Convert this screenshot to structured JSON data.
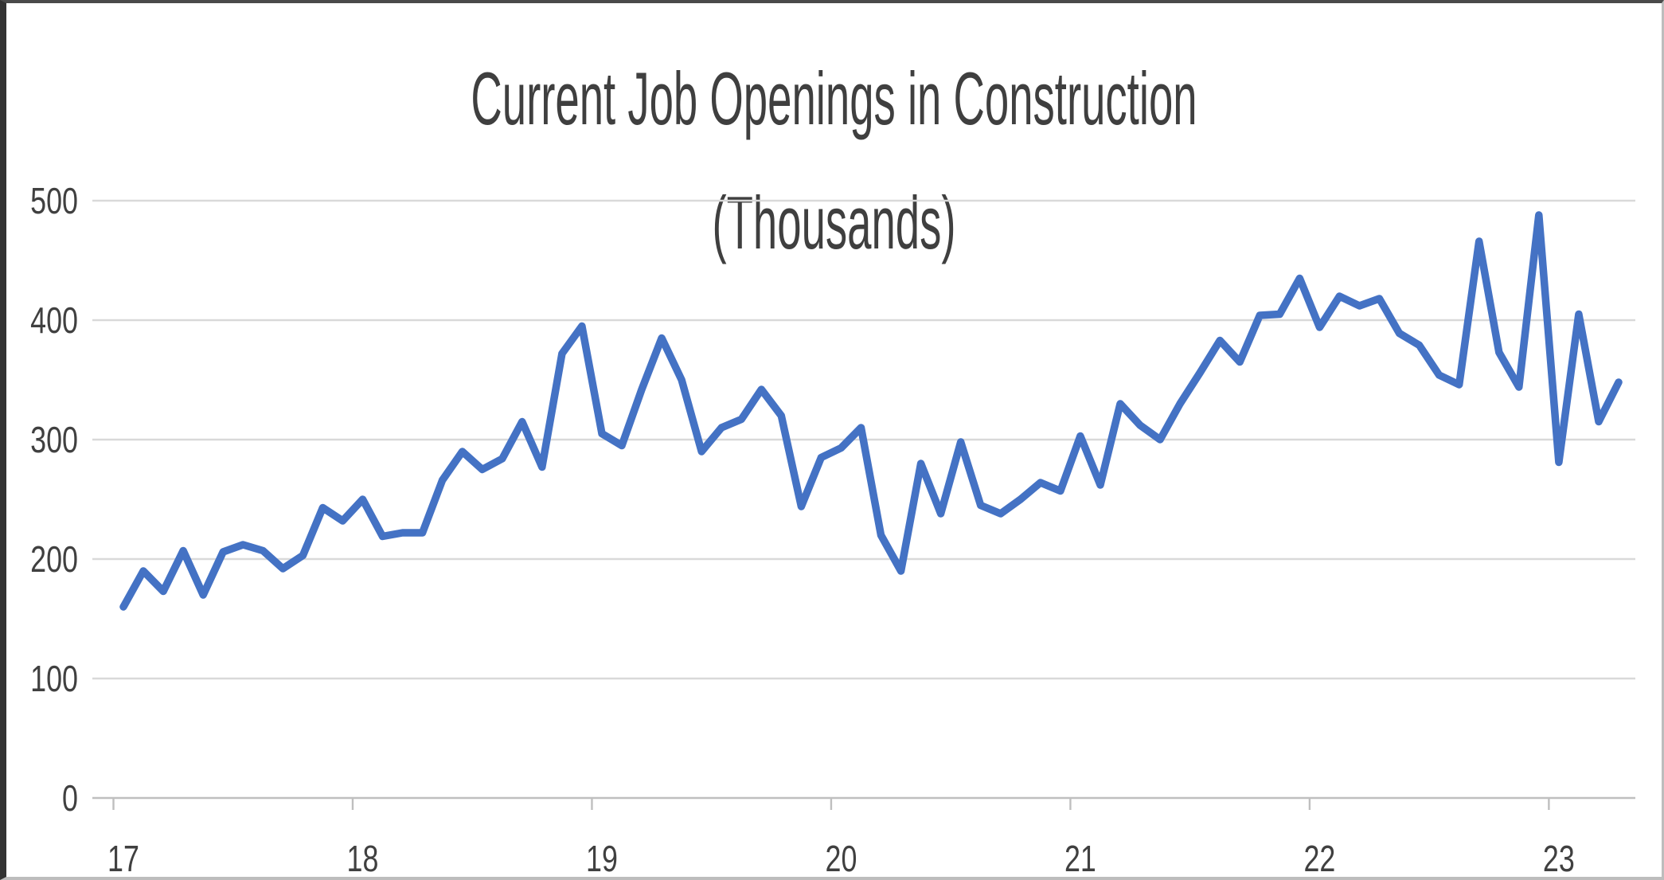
{
  "title": {
    "line1": "Current Job Openings in Construction",
    "line2": "(Thousands)"
  },
  "chart_data": {
    "type": "line",
    "title": "Current Job Openings in Construction",
    "subtitle": "(Thousands)",
    "xlabel": "",
    "ylabel": "",
    "x_unit": "years 2017-2023, monthly observations",
    "x_tick_labels": [
      "17",
      "18",
      "19",
      "20",
      "21",
      "22",
      "23"
    ],
    "y_ticks": [
      0,
      100,
      200,
      300,
      400,
      500
    ],
    "ylim": [
      0,
      500
    ],
    "grid": "horizontal-only",
    "legend": "none",
    "line_color": "#4472C4",
    "gridline_color": "#d9d9d9",
    "axis_color": "#bfbfbf",
    "tick_label_color": "#404040",
    "series": [
      {
        "name": "Construction job openings (thousands)",
        "start": "2017-01",
        "end": "2023-04",
        "frequency": "monthly",
        "values": [
          160,
          190,
          173,
          207,
          170,
          206,
          212,
          207,
          192,
          203,
          243,
          232,
          250,
          219,
          222,
          222,
          266,
          290,
          275,
          284,
          315,
          277,
          372,
          395,
          305,
          295,
          342,
          385,
          350,
          290,
          310,
          317,
          342,
          320,
          244,
          285,
          293,
          310,
          220,
          190,
          280,
          238,
          298,
          245,
          238,
          250,
          264,
          257,
          303,
          262,
          330,
          312,
          300,
          330,
          356,
          383,
          365,
          404,
          405,
          435,
          394,
          420,
          412,
          418,
          389,
          379,
          354,
          346,
          466,
          373,
          344,
          488,
          281,
          405,
          315,
          348
        ]
      }
    ]
  }
}
